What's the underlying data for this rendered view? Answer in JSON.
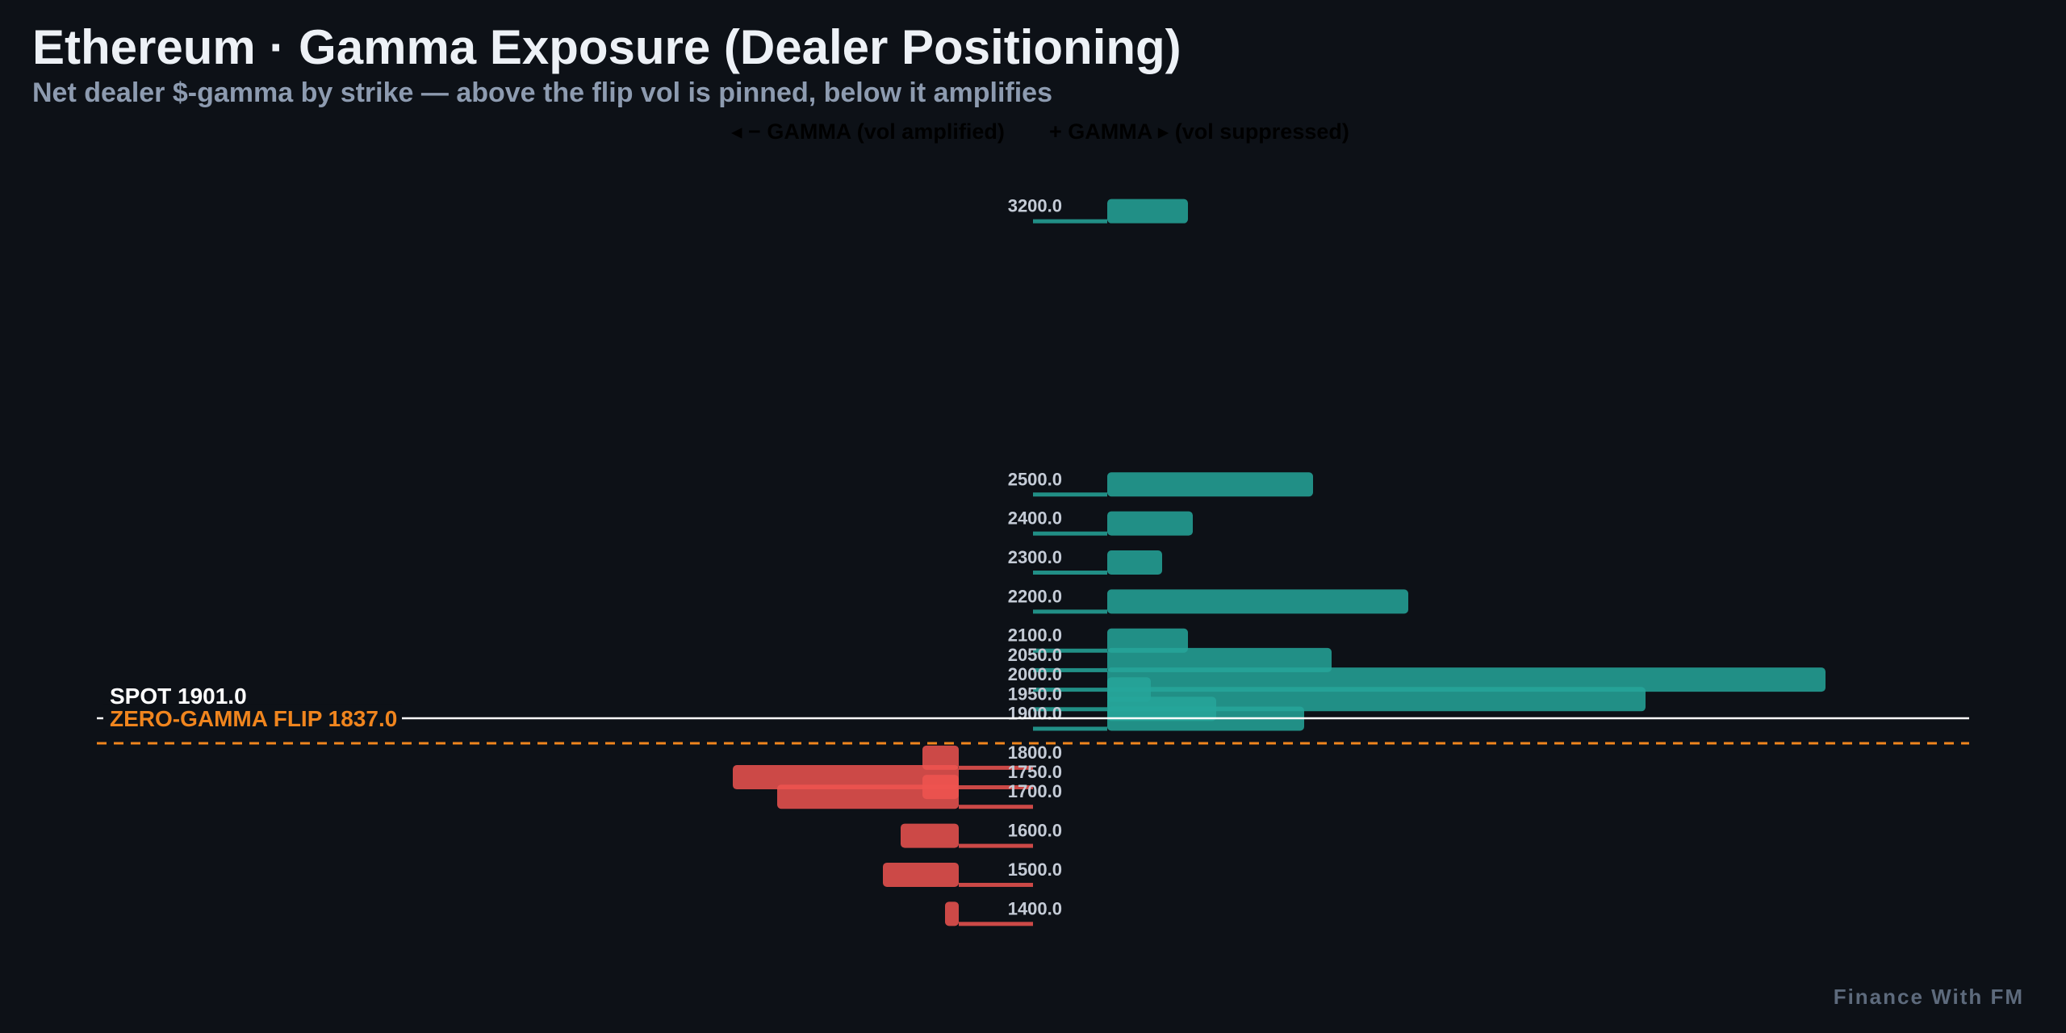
{
  "title": "Ethereum · Gamma Exposure (Dealer Positioning)",
  "subtitle": "Net dealer $-gamma by strike — above the flip vol is pinned, below it amplifies",
  "legend": {
    "negative": "◂ − GAMMA (vol amplified)",
    "positive": "+ GAMMA ▸ (vol suppressed)"
  },
  "watermark": "Finance With FM",
  "colors": {
    "background": "#0d1117",
    "positive": "#26a69a",
    "negative": "#ef5350",
    "spot": "#ffffff",
    "flip": "#f0851e"
  },
  "chart_data": {
    "type": "bar",
    "orientation": "horizontal",
    "title": "Ethereum · Gamma Exposure (Dealer Positioning)",
    "subtitle": "Net dealer $-gamma by strike — above the flip vol is pinned, below it amplifies",
    "y_axis": "strike",
    "strike_range": [
      1380,
      3220
    ],
    "x_axis_ticks_shown": false,
    "grid": false,
    "legend_placement": "top-center",
    "series": [
      {
        "label": "+ GAMMA ▸ (vol suppressed)",
        "color": "#26a69a",
        "points": [
          {
            "strike": 3200,
            "label": "3200.0",
            "gex": 100
          },
          {
            "strike": 2500,
            "label": "2500.0",
            "gex": 255
          },
          {
            "strike": 2400,
            "label": "2400.0",
            "gex": 106
          },
          {
            "strike": 2300,
            "label": "2300.0",
            "gex": 68
          },
          {
            "strike": 2200,
            "label": "2200.0",
            "gex": 373
          },
          {
            "strike": 2100,
            "label": "2100.0",
            "gex": 100
          },
          {
            "strike": 2050,
            "label": "2050.0",
            "gex": 278
          },
          {
            "strike": 2000,
            "label": "2000.0",
            "gex": 890
          },
          {
            "strike": 1975,
            "label": "",
            "gex": 54
          },
          {
            "strike": 1950,
            "label": "1950.0",
            "gex": 667
          },
          {
            "strike": 1925,
            "label": "",
            "gex": 135
          },
          {
            "strike": 1900,
            "label": "1900.0",
            "gex": 244
          }
        ]
      },
      {
        "label": "◂ − GAMMA (vol amplified)",
        "color": "#ef5350",
        "points": [
          {
            "strike": 1800,
            "label": "1800.0",
            "gex": -45
          },
          {
            "strike": 1750,
            "label": "1750.0",
            "gex": -280
          },
          {
            "strike": 1725,
            "label": "",
            "gex": -45
          },
          {
            "strike": 1700,
            "label": "1700.0",
            "gex": -225
          },
          {
            "strike": 1600,
            "label": "1600.0",
            "gex": -72
          },
          {
            "strike": 1500,
            "label": "1500.0",
            "gex": -94
          },
          {
            "strike": 1400,
            "label": "1400.0",
            "gex": -17
          }
        ]
      }
    ],
    "markers": [
      {
        "name": "spot",
        "label": "SPOT 1901.0",
        "value": 1901.0,
        "style": "solid",
        "color": "#ffffff"
      },
      {
        "name": "zero-gamma-flip",
        "label": "ZERO-GAMMA FLIP 1837.0",
        "value": 1837.0,
        "style": "dashed",
        "color": "#f0851e"
      }
    ]
  }
}
